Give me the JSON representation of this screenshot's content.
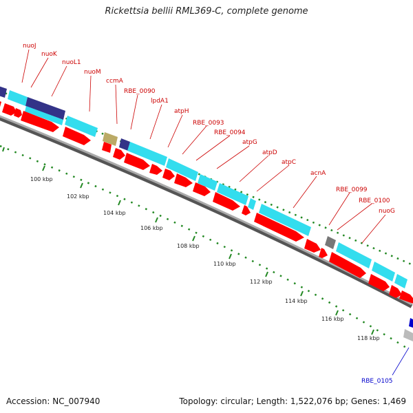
{
  "title": "Rickettsia bellii RML369-C, complete genome",
  "accession_label": "Accession: NC_007940",
  "topology_label": "Topology: circular; Length: 1,522,076 bp; Genes: 1,469",
  "ruler": [
    {
      "label": "100 kbp"
    },
    {
      "label": "102 kbp"
    },
    {
      "label": "104 kbp"
    },
    {
      "label": "106 kbp"
    },
    {
      "label": "108 kbp"
    },
    {
      "label": "110 kbp"
    },
    {
      "label": "112 kbp"
    },
    {
      "label": "114 kbp"
    },
    {
      "label": "116 kbp"
    },
    {
      "label": "118 kbp"
    }
  ],
  "gene_labels": [
    {
      "name": "nuoJ"
    },
    {
      "name": "nuoK"
    },
    {
      "name": "nuoL1"
    },
    {
      "name": "nuoM"
    },
    {
      "name": "ccmA"
    },
    {
      "name": "RBE_0090"
    },
    {
      "name": "lpdA1"
    },
    {
      "name": "atpH"
    },
    {
      "name": "RBE_0093"
    },
    {
      "name": "RBE_0094"
    },
    {
      "name": "atpG"
    },
    {
      "name": "atpD"
    },
    {
      "name": "atpC"
    },
    {
      "name": "acnA"
    },
    {
      "name": "RBE_0099"
    },
    {
      "name": "RBE_0100"
    },
    {
      "name": "nuoG"
    },
    {
      "name": "RBE_0105"
    }
  ],
  "colors": {
    "cds": "#ff0000",
    "orf_cyan": "#33ddee",
    "orf_navy": "#333388",
    "orf_tan": "#bbaa66",
    "orf_gray": "#777777",
    "backbone": "#8c8c8c",
    "tick_green": "#228822",
    "label_red": "#cc0000",
    "label_blue": "#0000cc"
  }
}
